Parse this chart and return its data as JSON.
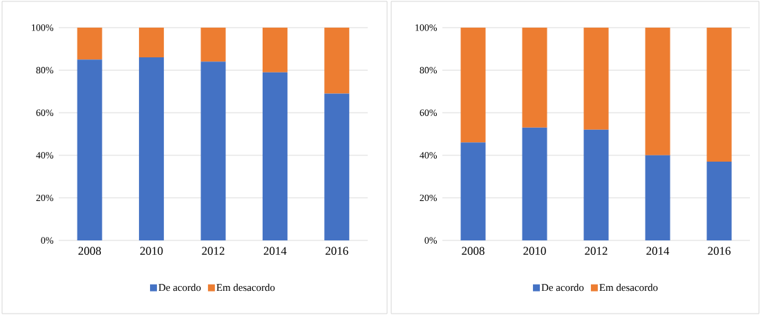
{
  "chart_data": [
    {
      "type": "bar",
      "stacked": true,
      "categories": [
        "2008",
        "2010",
        "2012",
        "2014",
        "2016"
      ],
      "series": [
        {
          "name": "De acordo",
          "color": "#4472c4",
          "values": [
            85,
            86,
            84,
            79,
            69
          ]
        },
        {
          "name": "Em desacordo",
          "color": "#ed7d31",
          "values": [
            15,
            14,
            16,
            21,
            31
          ]
        }
      ],
      "ylim": [
        0,
        100
      ],
      "yticks": [
        {
          "value": 0,
          "label": "0%"
        },
        {
          "value": 20,
          "label": "20%"
        },
        {
          "value": 40,
          "label": "40%"
        },
        {
          "value": 60,
          "label": "60%"
        },
        {
          "value": 80,
          "label": "80%"
        },
        {
          "value": 100,
          "label": "100%"
        }
      ],
      "grid": "y",
      "legend": "bottom"
    },
    {
      "type": "bar",
      "stacked": true,
      "categories": [
        "2008",
        "2010",
        "2012",
        "2014",
        "2016"
      ],
      "series": [
        {
          "name": "De acordo",
          "color": "#4472c4",
          "values": [
            46,
            53,
            52,
            40,
            37
          ]
        },
        {
          "name": "Em desacordo",
          "color": "#ed7d31",
          "values": [
            54,
            47,
            48,
            60,
            63
          ]
        }
      ],
      "ylim": [
        0,
        100
      ],
      "yticks": [
        {
          "value": 0,
          "label": "0%"
        },
        {
          "value": 20,
          "label": "20%"
        },
        {
          "value": 40,
          "label": "40%"
        },
        {
          "value": 60,
          "label": "60%"
        },
        {
          "value": 80,
          "label": "80%"
        },
        {
          "value": 100,
          "label": "100%"
        }
      ],
      "grid": "y",
      "legend": "bottom"
    }
  ]
}
